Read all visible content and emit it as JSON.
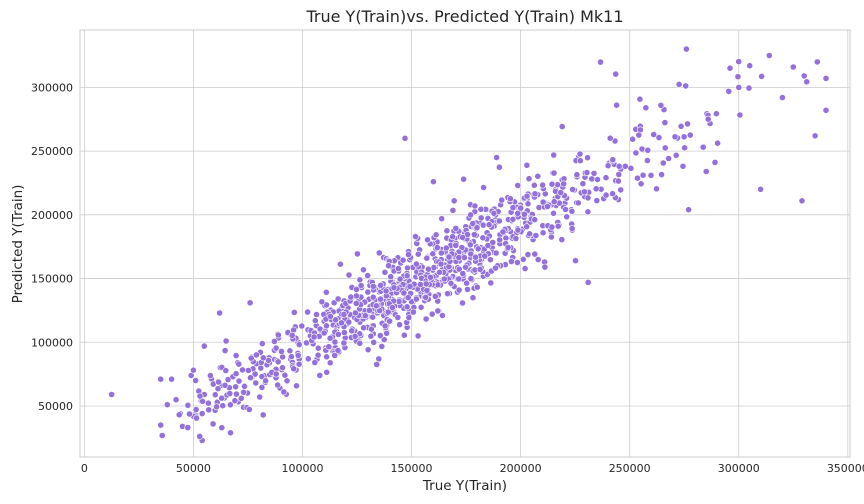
{
  "chart_data": {
    "type": "scatter",
    "title": "True Y(Train)vs. Predicted Y(Train) Mk11",
    "xlabel": "True Y(Train)",
    "ylabel": "Predicted Y(Train)",
    "xlim": [
      -2000,
      351000
    ],
    "ylim": [
      10000,
      345000
    ],
    "xticks": [
      0,
      50000,
      100000,
      150000,
      200000,
      250000,
      300000,
      350000
    ],
    "yticks": [
      50000,
      100000,
      150000,
      200000,
      250000,
      300000
    ],
    "grid": true,
    "marker_color": "#9370db",
    "points_generation": {
      "count": 1020,
      "distribution": "True values concentrated 100000-200000, ranging ~13000-340000; predicted ≈ 2000 + 0.96*true with noise",
      "seed": 11
    },
    "points": [
      [
        12500,
        59000
      ],
      [
        35000,
        71000
      ],
      [
        35000,
        35000
      ],
      [
        38000,
        51000
      ],
      [
        40000,
        71000
      ],
      [
        44000,
        44000
      ],
      [
        45000,
        34000
      ],
      [
        49000,
        74000
      ],
      [
        51000,
        70000
      ],
      [
        51000,
        43000
      ],
      [
        54000,
        23000
      ],
      [
        55000,
        97000
      ],
      [
        55000,
        59000
      ],
      [
        57000,
        47000
      ],
      [
        59000,
        36000
      ],
      [
        61000,
        53000
      ],
      [
        62000,
        123000
      ],
      [
        63000,
        33000
      ],
      [
        65000,
        101000
      ],
      [
        67000,
        29000
      ],
      [
        73000,
        49000
      ],
      [
        76000,
        131000
      ],
      [
        82000,
        43000
      ],
      [
        147000,
        260000
      ],
      [
        153000,
        105000
      ],
      [
        135000,
        87000
      ],
      [
        160000,
        226000
      ],
      [
        189000,
        245000
      ],
      [
        231000,
        147000
      ],
      [
        211000,
        163000
      ],
      [
        277000,
        204000
      ],
      [
        276000,
        330000
      ],
      [
        244000,
        286000
      ],
      [
        261000,
        263000
      ],
      [
        300000,
        300000
      ],
      [
        310000,
        220000
      ],
      [
        314000,
        325000
      ],
      [
        329000,
        211000
      ],
      [
        336000,
        320000
      ],
      [
        340000,
        282000
      ],
      [
        335000,
        262000
      ],
      [
        320000,
        292000
      ],
      [
        296000,
        315000
      ],
      [
        305000,
        317000
      ],
      [
        325000,
        316000
      ],
      [
        330000,
        309000
      ],
      [
        340000,
        307000
      ]
    ]
  }
}
